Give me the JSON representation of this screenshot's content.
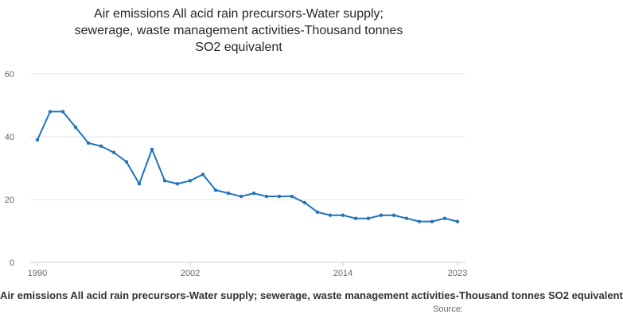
{
  "title_lines": [
    "Air emissions All acid rain precursors-Water supply;",
    "sewerage, waste management activities-Thousand tonnes",
    "SO2 equivalent"
  ],
  "footer": {
    "series_label": "Air emissions All acid rain precursors-Water supply; sewerage, waste management activities-Thousand tonnes SO2 equivalent",
    "source_label": "Source:"
  },
  "chart_data": {
    "type": "line",
    "title": "Air emissions All acid rain precursors-Water supply; sewerage, waste management activities-Thousand tonnes SO2 equivalent",
    "xlabel": "",
    "ylabel": "",
    "ylim": [
      0,
      60
    ],
    "yticks": [
      0,
      20,
      40,
      60
    ],
    "xticks": [
      1990,
      2002,
      2014,
      2023
    ],
    "grid": true,
    "legend_position": "bottom",
    "line_color": "#2073bc",
    "grid_color": "#e4e4e4",
    "axis_color": "#cccccc",
    "tick_label_color": "#666666",
    "x": [
      1990,
      1991,
      1992,
      1993,
      1994,
      1995,
      1996,
      1997,
      1998,
      1999,
      2000,
      2001,
      2002,
      2003,
      2004,
      2005,
      2006,
      2007,
      2008,
      2009,
      2010,
      2011,
      2012,
      2013,
      2014,
      2015,
      2016,
      2017,
      2018,
      2019,
      2020,
      2021,
      2022,
      2023
    ],
    "series": [
      {
        "name": "All acid rain precursors-Water supply; sewerage, waste management activities",
        "values": [
          39,
          48,
          48,
          43,
          38,
          37,
          35,
          32,
          25,
          36,
          26,
          25,
          26,
          28,
          23,
          22,
          21,
          22,
          21,
          21,
          21,
          19,
          16,
          15,
          15,
          14,
          14,
          15,
          15,
          14,
          13,
          13,
          14,
          13
        ]
      }
    ]
  }
}
